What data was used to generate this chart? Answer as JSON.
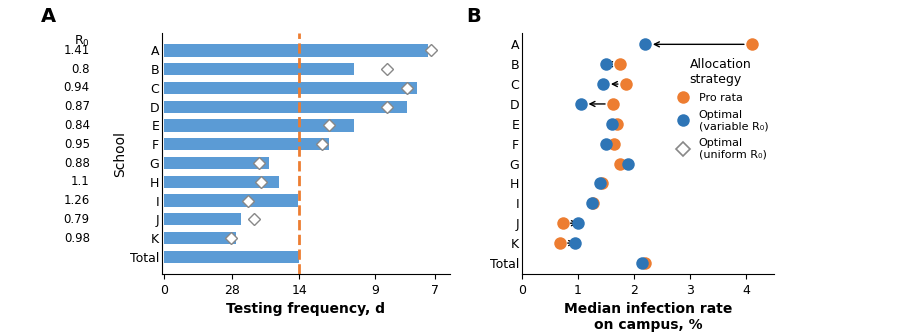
{
  "panel_A": {
    "schools": [
      "A",
      "B",
      "C",
      "D",
      "E",
      "F",
      "G",
      "H",
      "I",
      "J",
      "K",
      "Total"
    ],
    "R0_values": [
      "1.41",
      "0.8",
      "0.94",
      "0.87",
      "0.84",
      "0.95",
      "0.88",
      "1.1",
      "1.26",
      "0.79",
      "0.98",
      ""
    ],
    "bar_days": [
      7.2,
      10.0,
      7.5,
      7.8,
      10.0,
      11.5,
      18.0,
      16.5,
      14.2,
      24.5,
      26.5,
      14.0
    ],
    "diamond_days": [
      7.1,
      8.5,
      7.8,
      8.5,
      11.5,
      12.0,
      20.0,
      19.5,
      22.5,
      21.0,
      28.5,
      null
    ],
    "dashed_days": 14.0,
    "bar_color": "#5b9bd5",
    "dashed_color": "#ed7d31",
    "tick_days": [
      0,
      28,
      14,
      9,
      7
    ],
    "xlabel": "Testing frequency, d",
    "ylabel": "School"
  },
  "panel_B": {
    "schools": [
      "A",
      "B",
      "C",
      "D",
      "E",
      "F",
      "G",
      "H",
      "I",
      "J",
      "K",
      "Total"
    ],
    "optimal_pct": [
      2.2,
      1.5,
      1.45,
      1.05,
      1.6,
      1.5,
      1.9,
      1.4,
      1.25,
      1.0,
      0.95,
      2.15
    ],
    "prorata_pct": [
      4.1,
      1.75,
      1.85,
      1.62,
      1.7,
      1.65,
      1.75,
      1.42,
      1.27,
      0.73,
      0.68,
      2.2
    ],
    "optimal_color": "#2e75b6",
    "prorata_color": "#ed7d31",
    "xlim": [
      0,
      4.5
    ],
    "xticks": [
      0,
      1,
      2,
      3,
      4
    ],
    "xlabel": "Median infection rate\non campus, %",
    "legend_title": "Allocation\nstrategy"
  }
}
